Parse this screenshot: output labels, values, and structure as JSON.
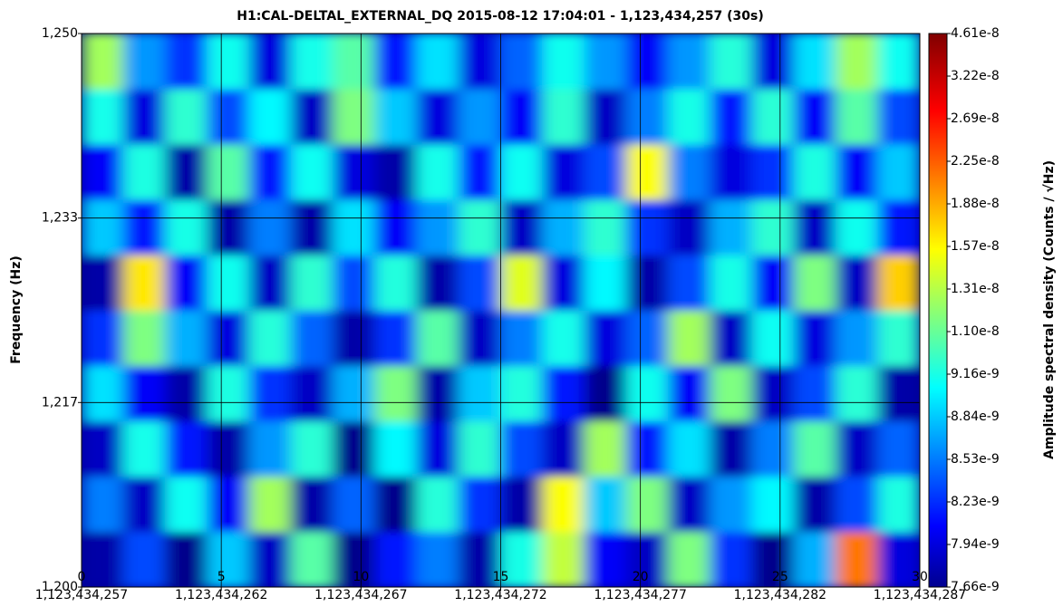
{
  "chart_data": {
    "type": "heatmap",
    "title": "H1:CAL-DELTAL_EXTERNAL_DQ 2015-08-12 17:04:01 - 1,123,434,257 (30s)",
    "ylabel": "Frequency (Hz)",
    "colorbar_label": "Amplitude spectral density (Counts / √Hz)",
    "xlim": [
      0,
      30
    ],
    "xticks": [
      0,
      5,
      10,
      15,
      20,
      25,
      30
    ],
    "xtick_sublabels": [
      "1,123,434,257",
      "1,123,434,262",
      "1,123,434,267",
      "1,123,434,272",
      "1,123,434,277",
      "1,123,434,282",
      "1,123,434,287"
    ],
    "ylim": [
      1200,
      1250
    ],
    "yticks": [
      {
        "value": 1200,
        "label": "1,200"
      },
      {
        "value": 1216.67,
        "label": "1,217"
      },
      {
        "value": 1233.33,
        "label": "1,233"
      },
      {
        "value": 1250,
        "label": "1,250"
      }
    ],
    "grid": true,
    "colormap": "jet",
    "colorbar_ticks": [
      7.66e-09,
      7.94e-09,
      8.23e-09,
      8.53e-09,
      8.84e-09,
      9.16e-09,
      {
        "value": 1.1e-08,
        "label": "1.10e-8"
      },
      1.31e-08,
      1.57e-08,
      1.88e-08,
      2.25e-08,
      2.69e-08,
      3.22e-08,
      4.61e-08
    ],
    "x": [
      0.75,
      2.25,
      3.75,
      5.25,
      6.75,
      8.25,
      9.75,
      11.25,
      12.75,
      14.25,
      15.75,
      17.25,
      18.75,
      20.25,
      21.75,
      23.25,
      24.75,
      26.25,
      27.75,
      29.25
    ],
    "y": [
      1202.5,
      1207.5,
      1212.5,
      1217.5,
      1222.5,
      1227.5,
      1232.5,
      1237.5,
      1242.5,
      1247.5
    ],
    "z": [
      [
        7.8e-09,
        8.4e-09,
        7.7e-09,
        8.9e-09,
        7.9e-09,
        1.1e-08,
        7.7e-09,
        8.2e-09,
        8.6e-09,
        7.8e-09,
        9.5e-09,
        1.4e-08,
        8.1e-09,
        7.9e-09,
        1.2e-08,
        8.3e-09,
        7.7e-09,
        8.8e-09,
        2.2e-08,
        8e-09
      ],
      [
        8.6e-09,
        7.9e-09,
        9.2e-09,
        8.1e-09,
        1.3e-08,
        7.8e-09,
        8.5e-09,
        7.7e-09,
        9.8e-09,
        8.3e-09,
        7.8e-09,
        1.6e-08,
        8.9e-09,
        1.2e-08,
        7.9e-09,
        8.7e-09,
        9.1e-09,
        7.8e-09,
        8.4e-09,
        9.6e-09
      ],
      [
        7.9e-09,
        9.4e-09,
        8.2e-09,
        7.8e-09,
        8.7e-09,
        9.9e-09,
        7.7e-09,
        9.1e-09,
        8e-09,
        1e-08,
        8.4e-09,
        7.9e-09,
        1.3e-08,
        8.2e-09,
        9e-09,
        7.8e-09,
        8.6e-09,
        1.1e-08,
        7.9e-09,
        8.5e-09
      ],
      [
        9e-09,
        8.1e-09,
        7.8e-09,
        9.6e-09,
        8.3e-09,
        7.9e-09,
        8.8e-09,
        1.2e-08,
        7.8e-09,
        8.9e-09,
        9.7e-09,
        8.2e-09,
        7.7e-09,
        9.3e-09,
        8.1e-09,
        1.2e-08,
        7.9e-09,
        8.4e-09,
        9.9e-09,
        7.8e-09
      ],
      [
        8.3e-09,
        1.2e-08,
        8.8e-09,
        8e-09,
        9.8e-09,
        8.5e-09,
        7.8e-09,
        8.3e-09,
        1.1e-08,
        7.9e-09,
        8.6e-09,
        9.4e-09,
        8e-09,
        8.5e-09,
        1.3e-08,
        7.9e-09,
        9.2e-09,
        8e-09,
        8.7e-09,
        1e-08
      ],
      [
        7.8e-09,
        1.7e-08,
        8.1e-09,
        9.3e-09,
        7.9e-09,
        1e-08,
        8.4e-09,
        9.7e-09,
        7.8e-09,
        8.4e-09,
        1.5e-08,
        8e-09,
        9.1e-09,
        7.8e-09,
        8.4e-09,
        9.5e-09,
        8.1e-09,
        1.2e-08,
        7.9e-09,
        1.8e-08
      ],
      [
        8.9e-09,
        8.2e-09,
        9.5e-09,
        7.8e-09,
        8.6e-09,
        7.8e-09,
        9e-09,
        8.1e-09,
        8.7e-09,
        1e-08,
        7.9e-09,
        8.8e-09,
        1e-08,
        8.3e-09,
        7.9e-09,
        8.8e-09,
        1e-08,
        7.9e-09,
        9.3e-09,
        8.2e-09
      ],
      [
        8.1e-09,
        9.6e-09,
        7.8e-09,
        1.1e-08,
        8.2e-09,
        9.2e-09,
        8e-09,
        7.8e-09,
        9.4e-09,
        8.2e-09,
        9.2e-09,
        8e-09,
        8.4e-09,
        1.6e-08,
        8.6e-09,
        8e-09,
        8.3e-09,
        9.6e-09,
        8.1e-09,
        8.9e-09
      ],
      [
        9.4e-09,
        8e-09,
        1e-08,
        8.4e-09,
        9.1e-09,
        7.9e-09,
        1.2e-08,
        8.9e-09,
        8e-09,
        8.7e-09,
        8.1e-09,
        1e-08,
        7.9e-09,
        8.6e-09,
        9.5e-09,
        8.2e-09,
        9.9e-09,
        8.1e-09,
        1.1e-08,
        8.4e-09
      ],
      [
        1.3e-08,
        8.7e-09,
        8.3e-09,
        9.3e-09,
        8e-09,
        9.4e-09,
        1.1e-08,
        8.2e-09,
        9e-09,
        8e-09,
        8.5e-09,
        9.3e-09,
        8.7e-09,
        8.1e-09,
        8.7e-09,
        9.8e-09,
        8e-09,
        9e-09,
        1.3e-08,
        9.2e-09
      ]
    ]
  }
}
